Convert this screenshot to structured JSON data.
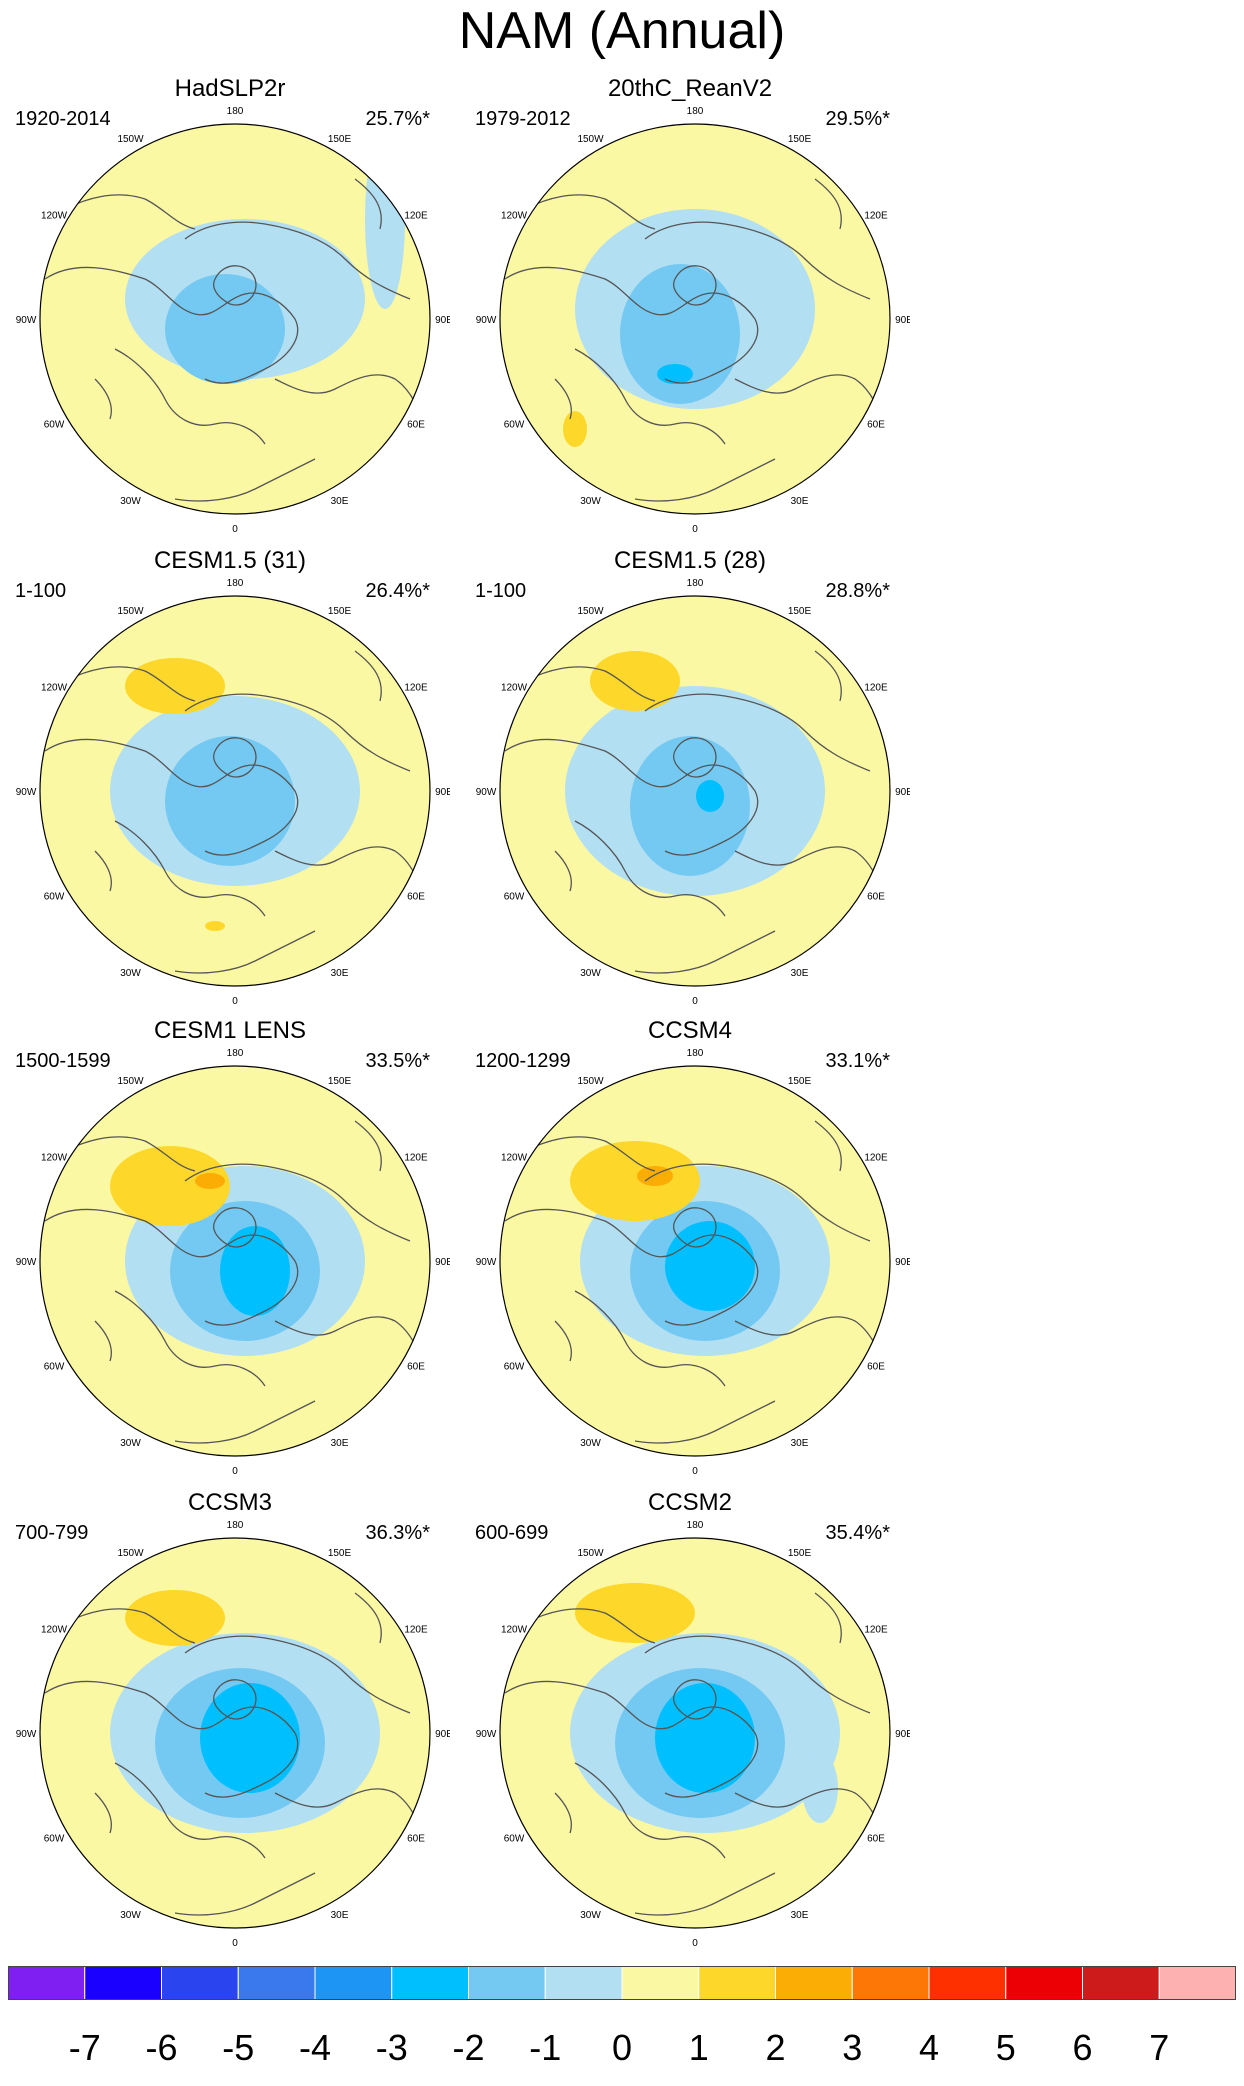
{
  "title": "NAM (Annual)",
  "longitude_labels": [
    "180",
    "150E",
    "120E",
    "90E",
    "60E",
    "30E",
    "0",
    "30W",
    "60W",
    "90W",
    "120W",
    "150W"
  ],
  "panels": [
    {
      "title": "HadSLP2r",
      "period": "1920-2014",
      "variance": "25.7%*"
    },
    {
      "title": "20thC_ReanV2",
      "period": "1979-2012",
      "variance": "29.5%*"
    },
    {
      "title": "CESM1.5 (31)",
      "period": "1-100",
      "variance": "26.4%*"
    },
    {
      "title": "CESM1.5 (28)",
      "period": "1-100",
      "variance": "28.8%*"
    },
    {
      "title": "CESM1 LENS",
      "period": "1500-1599",
      "variance": "33.5%*"
    },
    {
      "title": "CCSM4",
      "period": "1200-1299",
      "variance": "33.1%*"
    },
    {
      "title": "CCSM3",
      "period": "700-799",
      "variance": "36.3%*"
    },
    {
      "title": "CCSM2",
      "period": "600-699",
      "variance": "35.4%*"
    }
  ],
  "colorbar": {
    "tick_labels": [
      "-7",
      "-6",
      "-5",
      "-4",
      "-3",
      "-2",
      "-1",
      "0",
      "1",
      "2",
      "3",
      "4",
      "5",
      "6",
      "7"
    ],
    "colors": [
      "#7f1ff2",
      "#1a00ff",
      "#2a45f0",
      "#3a78ee",
      "#1d95f5",
      "#00bfff",
      "#74c9f2",
      "#b3dff3",
      "#fbf8a3",
      "#fdd72a",
      "#fbad05",
      "#fc7706",
      "#ff3000",
      "#ed0005",
      "#cd1a1a",
      "#feb1b1"
    ]
  },
  "palette": {
    "land_outline": "#555555",
    "border": "#000000"
  }
}
